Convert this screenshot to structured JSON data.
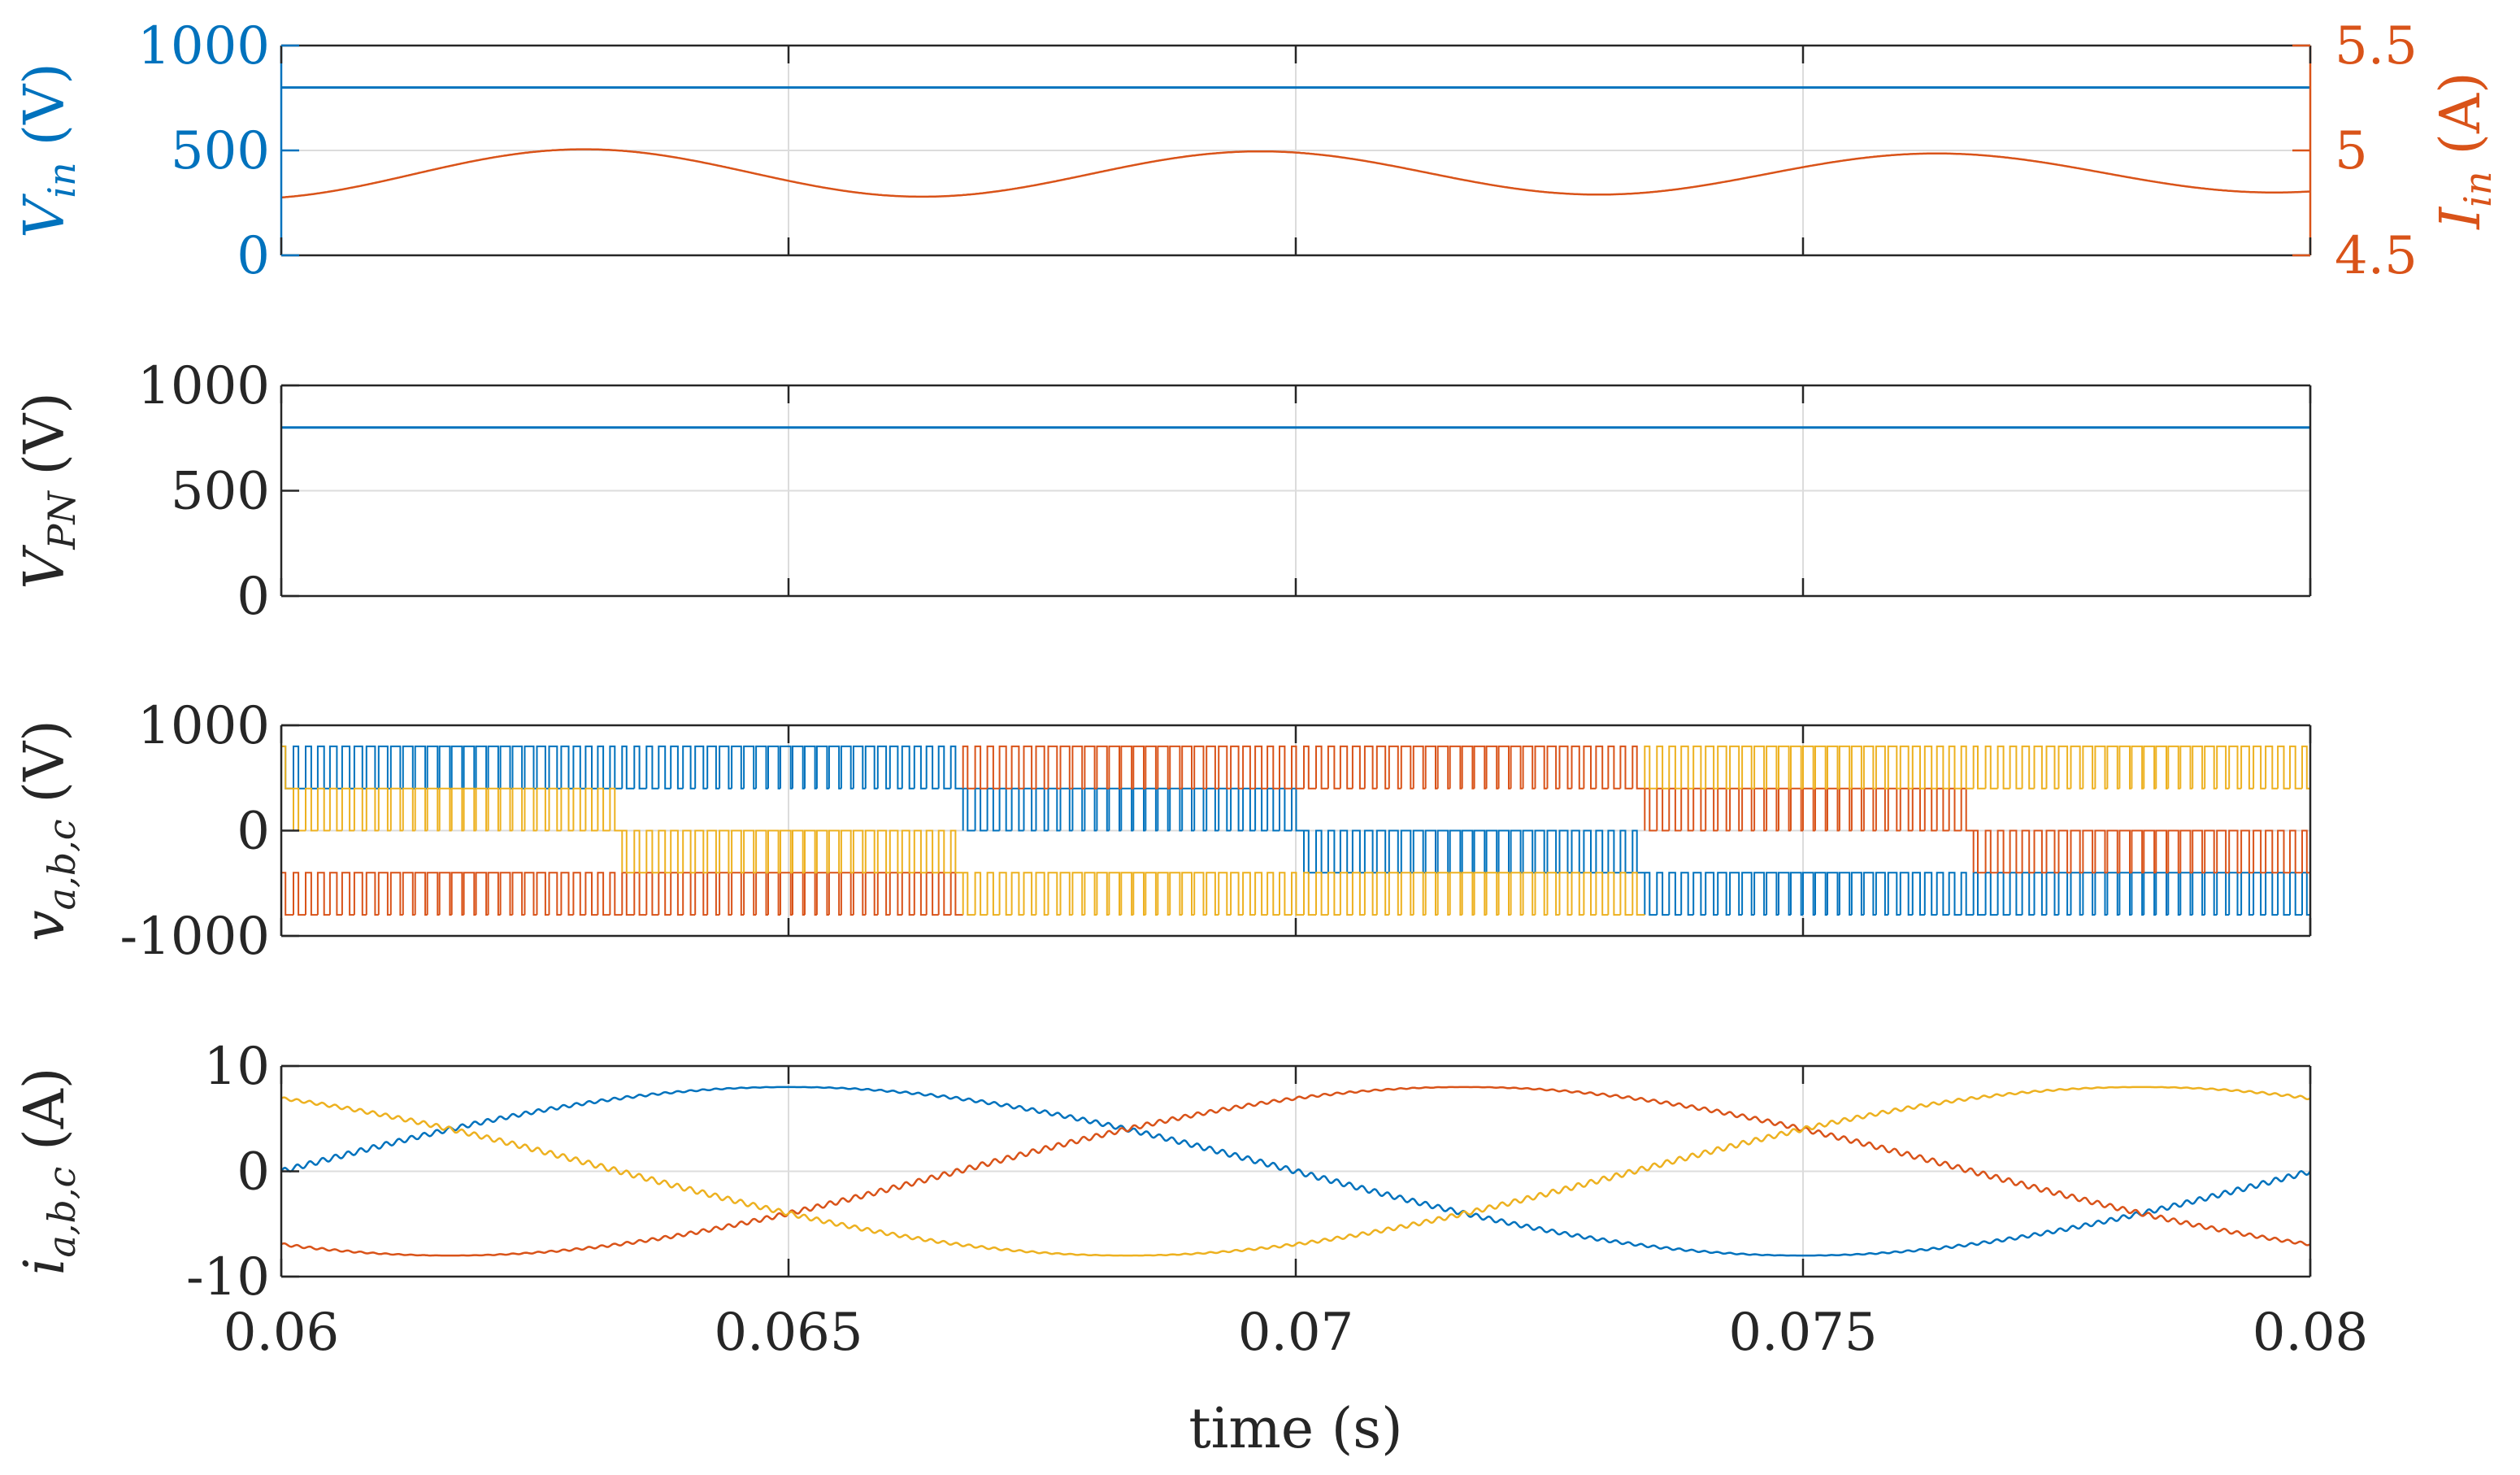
{
  "colors": {
    "blue": "#0072BD",
    "orange": "#D95319",
    "yellow": "#EDB120",
    "axis": "#262626",
    "grid": "#DCDCDC"
  },
  "chart_data": [
    {
      "id": "p1",
      "type": "line",
      "xlim": [
        0.06,
        0.08
      ],
      "ylabel_left": {
        "main": "V",
        "sub": "in",
        "unit": "(V)"
      },
      "ylabel_right": {
        "main": "I",
        "sub": "in",
        "unit": "(A)"
      },
      "ylim": [
        0,
        1000
      ],
      "ylim_right": [
        4.5,
        5.5
      ],
      "yticks": [
        0,
        500,
        1000
      ],
      "ytick_labels": [
        "0",
        "500",
        "1000"
      ],
      "yticks_right": [
        4.5,
        5,
        5.5
      ],
      "ytick_labels_right": [
        "4.5",
        "5",
        "5.5"
      ],
      "series": [
        {
          "name": "V_in",
          "axis": "left",
          "color": "blue",
          "kind": "const",
          "value": 800
        },
        {
          "name": "I_in",
          "axis": "right",
          "color": "orange",
          "kind": "sine",
          "offset": 4.89,
          "amplitude": 0.12,
          "freq_hz": 150,
          "phase_deg": -72,
          "amplitude_decay": 0.25
        }
      ]
    },
    {
      "id": "p2",
      "type": "line",
      "xlim": [
        0.06,
        0.08
      ],
      "ylabel": {
        "main": "V",
        "sub": "PN",
        "unit": "(V)"
      },
      "ylim": [
        0,
        1000
      ],
      "yticks": [
        0,
        500,
        1000
      ],
      "ytick_labels": [
        "0",
        "500",
        "1000"
      ],
      "series": [
        {
          "name": "V_PN",
          "color": "blue",
          "kind": "const",
          "value": 800
        }
      ]
    },
    {
      "id": "p3",
      "type": "line",
      "xlim": [
        0.06,
        0.08
      ],
      "ylabel": {
        "main": "v",
        "sub": "a,b,c",
        "unit": "(V)"
      },
      "ylim": [
        -1000,
        1000
      ],
      "yticks": [
        -1000,
        0,
        1000
      ],
      "ytick_labels": [
        "-1000",
        "0",
        "1000"
      ],
      "levels": [
        -800,
        -400,
        0,
        400,
        800
      ],
      "series": [
        {
          "name": "v_a",
          "color": "blue",
          "kind": "pwm",
          "phase_deg": 0
        },
        {
          "name": "v_b",
          "color": "orange",
          "kind": "pwm",
          "phase_deg": -120
        },
        {
          "name": "v_c",
          "color": "yellow",
          "kind": "pwm",
          "phase_deg": 120
        }
      ]
    },
    {
      "id": "p4",
      "type": "line",
      "xlim": [
        0.06,
        0.08
      ],
      "ylabel": {
        "main": "i",
        "sub": "a,b,c",
        "unit": "(A)"
      },
      "xlabel": "time (s)",
      "ylim": [
        -10,
        10
      ],
      "yticks": [
        -10,
        0,
        10
      ],
      "ytick_labels": [
        "-10",
        "0",
        "10"
      ],
      "series": [
        {
          "name": "i_a",
          "color": "blue",
          "kind": "sine",
          "amplitude": 8,
          "freq_hz": 50,
          "phase_deg": 0
        },
        {
          "name": "i_b",
          "color": "orange",
          "kind": "sine",
          "amplitude": 8,
          "freq_hz": 50,
          "phase_deg": -120
        },
        {
          "name": "i_c",
          "color": "yellow",
          "kind": "sine",
          "amplitude": 8,
          "freq_hz": 50,
          "phase_deg": 120
        }
      ]
    }
  ],
  "xticks": [
    0.06,
    0.065,
    0.07,
    0.075,
    0.08
  ],
  "xtick_labels": [
    "0.06",
    "0.065",
    "0.07",
    "0.075",
    "0.08"
  ],
  "xlabel": "time (s)"
}
